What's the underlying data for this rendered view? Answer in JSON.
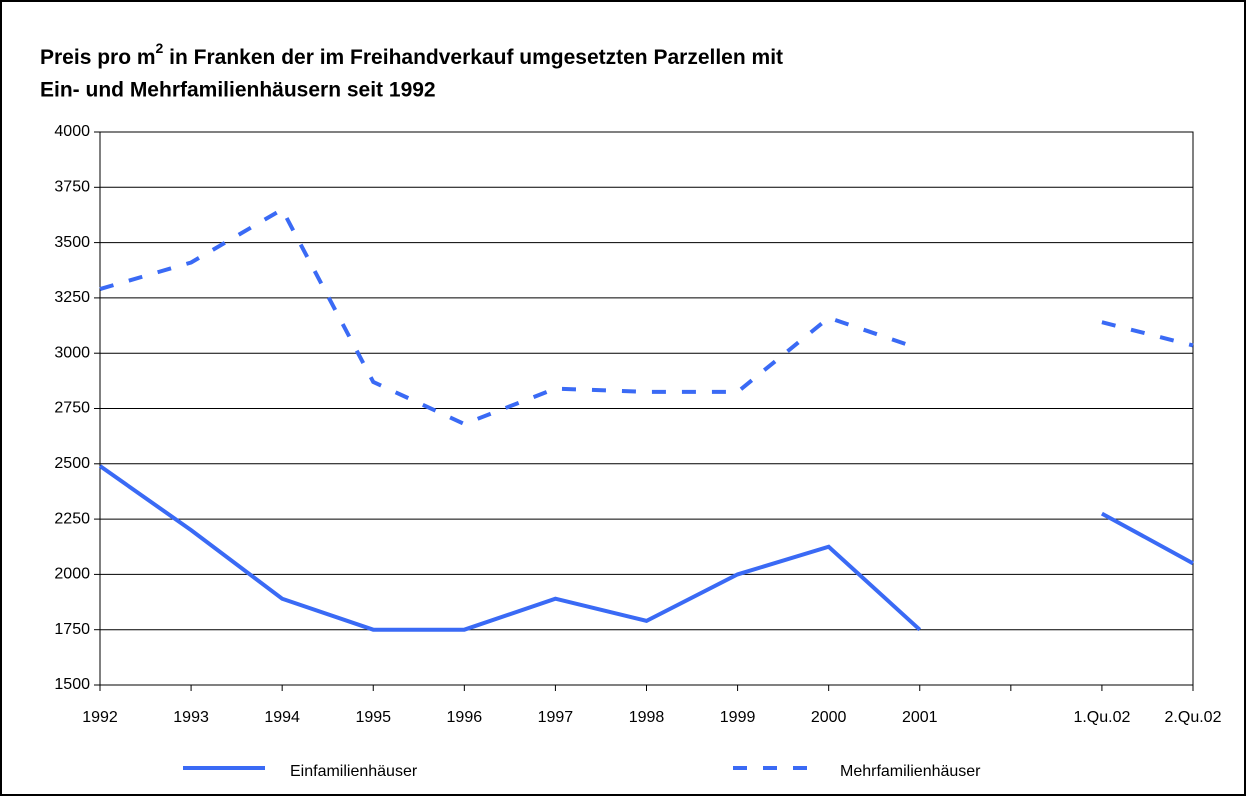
{
  "chart_data": {
    "type": "line",
    "title": [
      "Preis pro m",
      "2",
      " in Franken der im Freihandverkauf umgesetzten Parzellen mit",
      "Ein- und Mehrfamilienhäusern seit 1992"
    ],
    "categories": [
      "1992",
      "1993",
      "1994",
      "1995",
      "1996",
      "1997",
      "1998",
      "1999",
      "2000",
      "2001",
      null,
      "1.Qu.02",
      "2.Qu.02"
    ],
    "series": [
      {
        "name": "Einfamilienhäuser",
        "color": "#3a6af5",
        "dashed": false,
        "values": [
          2490,
          2200,
          1890,
          1750,
          1750,
          1890,
          1790,
          2000,
          2125,
          1750,
          null,
          2275,
          2050
        ]
      },
      {
        "name": "Mehrfamilienhäuser",
        "color": "#3a6af5",
        "dashed": true,
        "values": [
          3290,
          3410,
          3650,
          2870,
          2680,
          2840,
          2825,
          2825,
          3160,
          3020,
          null,
          3140,
          3035
        ]
      }
    ],
    "ylim": [
      1500,
      4000
    ],
    "yticks": [
      1500,
      1750,
      2000,
      2250,
      2500,
      2750,
      3000,
      3250,
      3500,
      3750,
      4000
    ],
    "grid": true,
    "legend": "bottom"
  }
}
